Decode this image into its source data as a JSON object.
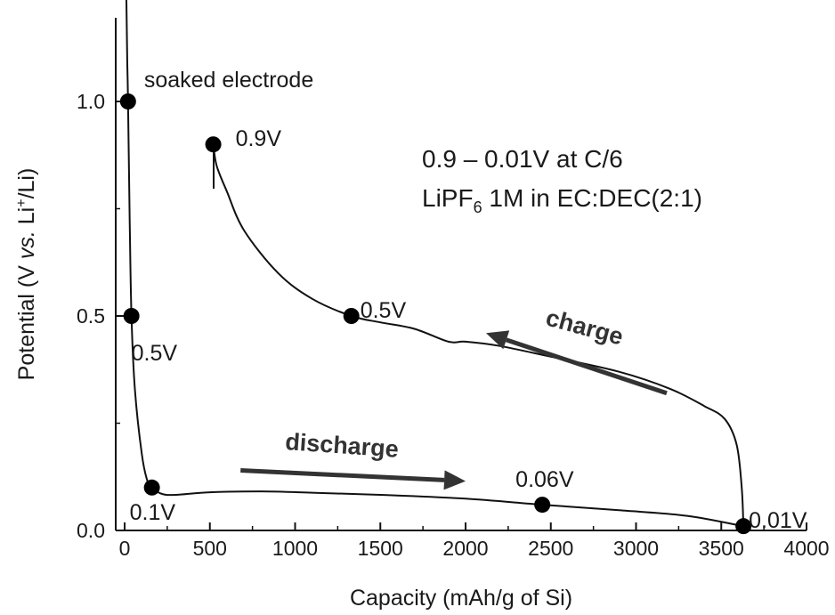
{
  "chart_data": {
    "type": "line",
    "xlabel": "Capacity (mAh/g of Si)",
    "ylabel_parts": {
      "prefix": "Potential (V ",
      "vs": "vs.",
      "mid": " Li",
      "sup": "+",
      "suffix": "/Li)"
    },
    "xlim": [
      0,
      4000
    ],
    "ylim": [
      0,
      1.25
    ],
    "x_ticks": [
      0,
      500,
      1000,
      1500,
      2000,
      2500,
      3000,
      3500,
      4000
    ],
    "x_tick_labels": [
      "0",
      "500",
      "1000",
      "1500",
      "2000",
      "2500",
      "3000",
      "3500",
      "4000"
    ],
    "y_ticks": [
      0.0,
      0.5,
      1.0
    ],
    "y_tick_labels": [
      "0.0",
      "0.5",
      "1.0"
    ],
    "grid": false,
    "series": [
      {
        "segment": "discharge",
        "points": [
          [
            10,
            1.25
          ],
          [
            15,
            1.1
          ],
          [
            20,
            1.0
          ],
          [
            30,
            0.72
          ],
          [
            40,
            0.5
          ],
          [
            60,
            0.33
          ],
          [
            100,
            0.18
          ],
          [
            130,
            0.12
          ],
          [
            160,
            0.1
          ],
          [
            220,
            0.085
          ],
          [
            300,
            0.083
          ],
          [
            500,
            0.089
          ],
          [
            800,
            0.091
          ],
          [
            1100,
            0.088
          ],
          [
            1500,
            0.083
          ],
          [
            2000,
            0.074
          ],
          [
            2450,
            0.06
          ],
          [
            2900,
            0.047
          ],
          [
            3300,
            0.034
          ],
          [
            3630,
            0.01
          ]
        ]
      },
      {
        "segment": "charge",
        "points": [
          [
            3630,
            0.01
          ],
          [
            3620,
            0.1
          ],
          [
            3590,
            0.2
          ],
          [
            3520,
            0.26
          ],
          [
            3400,
            0.29
          ],
          [
            3200,
            0.33
          ],
          [
            2900,
            0.37
          ],
          [
            2500,
            0.405
          ],
          [
            2200,
            0.43
          ],
          [
            2000,
            0.44
          ],
          [
            1900,
            0.44
          ],
          [
            1700,
            0.47
          ],
          [
            1500,
            0.485
          ],
          [
            1330,
            0.5
          ],
          [
            1100,
            0.54
          ],
          [
            900,
            0.6
          ],
          [
            700,
            0.7
          ],
          [
            600,
            0.79
          ],
          [
            540,
            0.85
          ],
          [
            520,
            0.9
          ]
        ]
      }
    ],
    "markers": [
      {
        "x": 20,
        "y": 1.0,
        "label": "soaked electrode"
      },
      {
        "x": 40,
        "y": 0.5,
        "label": "0.5V"
      },
      {
        "x": 160,
        "y": 0.1,
        "label": "0.1V"
      },
      {
        "x": 2450,
        "y": 0.06,
        "label": "0.06V"
      },
      {
        "x": 3630,
        "y": 0.01,
        "label": "0.01V"
      },
      {
        "x": 1330,
        "y": 0.5,
        "label": "0.5V"
      },
      {
        "x": 520,
        "y": 0.9,
        "label": "0.9V"
      }
    ],
    "annotations": {
      "conditions_line1": "0.9 – 0.01V at C/6",
      "conditions_line2_parts": {
        "a": "LiPF",
        "sub": "6",
        "b": " 1M in EC:DEC(2:1)"
      },
      "discharge_label": "discharge",
      "charge_label": "charge"
    },
    "arrows": {
      "discharge": {
        "from": [
          680,
          0.14
        ],
        "to": [
          2000,
          0.115
        ]
      },
      "charge": {
        "from": [
          3180,
          0.32
        ],
        "to": [
          2120,
          0.46
        ]
      }
    }
  }
}
